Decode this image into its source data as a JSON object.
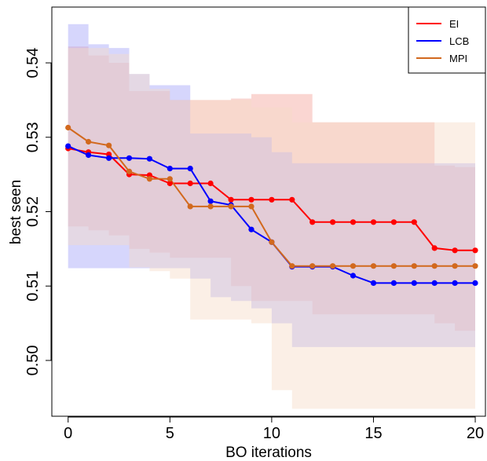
{
  "chart_data": {
    "type": "line",
    "title": "",
    "xlabel": "BO iterations",
    "ylabel": "best seen",
    "xlim": [
      -0.8,
      20.5
    ],
    "ylim": [
      0.4925,
      0.5475
    ],
    "x_ticks": [
      0,
      5,
      10,
      15,
      20
    ],
    "y_ticks": [
      0.5,
      0.51,
      0.52,
      0.53,
      0.54
    ],
    "y_tick_labels": [
      "0.50",
      "0.51",
      "0.52",
      "0.53",
      "0.54"
    ],
    "legend_position": "top-right",
    "grid": false,
    "x": [
      0,
      1,
      2,
      3,
      4,
      5,
      6,
      7,
      8,
      9,
      10,
      11,
      12,
      13,
      14,
      15,
      16,
      17,
      18,
      19,
      20
    ],
    "series": [
      {
        "name": "EI",
        "color": "#ff0000",
        "band_color": "#f4a59c",
        "values": [
          0.5285,
          0.528,
          0.5277,
          0.525,
          0.5249,
          0.5238,
          0.5238,
          0.5238,
          0.5216,
          0.5216,
          0.5216,
          0.5216,
          0.5186,
          0.5186,
          0.5186,
          0.5186,
          0.5186,
          0.5186,
          0.5151,
          0.5148,
          0.5148
        ],
        "upper": [
          0.5422,
          0.541,
          0.54,
          0.5362,
          0.5362,
          0.535,
          0.535,
          0.535,
          0.5352,
          0.5358,
          0.5358,
          0.5358,
          0.532,
          0.532,
          0.532,
          0.532,
          0.532,
          0.532,
          0.5262,
          0.526,
          0.526
        ],
        "lower": [
          0.518,
          0.5175,
          0.5168,
          0.515,
          0.5145,
          0.5138,
          0.5138,
          0.5138,
          0.51,
          0.508,
          0.508,
          0.508,
          0.5062,
          0.5062,
          0.5062,
          0.5062,
          0.5062,
          0.5062,
          0.505,
          0.504,
          0.504
        ]
      },
      {
        "name": "LCB",
        "color": "#0000ff",
        "band_color": "#a3a3f8",
        "values": [
          0.5288,
          0.5276,
          0.5272,
          0.5272,
          0.5271,
          0.5258,
          0.5258,
          0.5214,
          0.5209,
          0.5176,
          0.5159,
          0.5126,
          0.5126,
          0.5126,
          0.5114,
          0.5104,
          0.5104,
          0.5104,
          0.5104,
          0.5104,
          0.5104
        ],
        "upper": [
          0.5452,
          0.5425,
          0.542,
          0.5385,
          0.537,
          0.537,
          0.5305,
          0.5305,
          0.5305,
          0.53,
          0.528,
          0.5265,
          0.5265,
          0.5265,
          0.5265,
          0.5265,
          0.5265,
          0.5265,
          0.5265,
          0.5265,
          0.5265
        ],
        "lower": [
          0.5124,
          0.5124,
          0.5124,
          0.5124,
          0.5124,
          0.5124,
          0.511,
          0.5085,
          0.508,
          0.507,
          0.505,
          0.5018,
          0.5018,
          0.5018,
          0.5018,
          0.5018,
          0.5018,
          0.5018,
          0.5018,
          0.5018,
          0.5018
        ]
      },
      {
        "name": "MPI",
        "color": "#d2691e",
        "band_color": "#f7dcc8",
        "values": [
          0.5313,
          0.5294,
          0.5289,
          0.5254,
          0.5244,
          0.5244,
          0.5207,
          0.5207,
          0.5207,
          0.5207,
          0.5159,
          0.5127,
          0.5127,
          0.5127,
          0.5127,
          0.5127,
          0.5127,
          0.5127,
          0.5127,
          0.5127,
          0.5127
        ],
        "upper": [
          0.542,
          0.542,
          0.5412,
          0.5385,
          0.5365,
          0.535,
          0.535,
          0.535,
          0.535,
          0.534,
          0.534,
          0.532,
          0.532,
          0.532,
          0.532,
          0.532,
          0.532,
          0.532,
          0.532,
          0.532,
          0.532
        ],
        "lower": [
          0.5155,
          0.5155,
          0.5155,
          0.5125,
          0.512,
          0.511,
          0.5055,
          0.5055,
          0.5055,
          0.505,
          0.496,
          0.4935,
          0.4935,
          0.4935,
          0.4935,
          0.4935,
          0.4935,
          0.4935,
          0.4935,
          0.4935,
          0.4935
        ]
      }
    ]
  }
}
